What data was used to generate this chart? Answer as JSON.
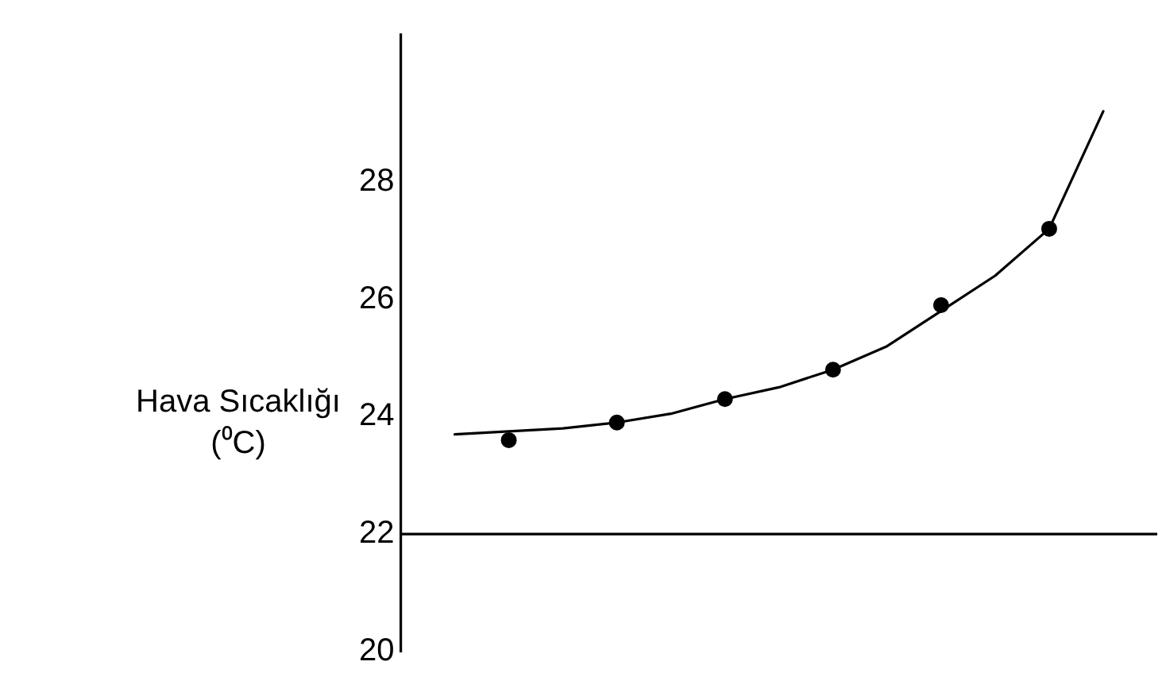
{
  "chart_data": {
    "type": "line",
    "ylabel": "Hava Sıcaklığı\n(⁰C)",
    "categories": [
      null,
      null,
      null,
      null,
      null,
      null,
      null,
      null,
      null,
      null,
      null,
      null,
      null,
      null,
      null
    ],
    "ylim": [
      20,
      30.5
    ],
    "yticks": [
      20,
      22,
      24,
      26,
      28
    ],
    "tick_labels": "y",
    "grid": false,
    "legend": false,
    "ref_lines": [
      {
        "axis": "y",
        "value": 22,
        "color": "#000000"
      }
    ],
    "series": [
      {
        "marker": "none",
        "line_style": "solid",
        "color": "#000000",
        "values": [
          null,
          23.7,
          23.75,
          23.8,
          23.9,
          24.05,
          24.3,
          24.5,
          24.8,
          25.2,
          25.8,
          26.4,
          27.2,
          29.2,
          null
        ]
      },
      {
        "type": "scatter",
        "marker": "circle",
        "color": "#000000",
        "values": [
          null,
          null,
          23.6,
          null,
          23.9,
          null,
          24.3,
          null,
          24.8,
          null,
          25.9,
          null,
          27.2,
          null,
          null
        ]
      }
    ]
  }
}
